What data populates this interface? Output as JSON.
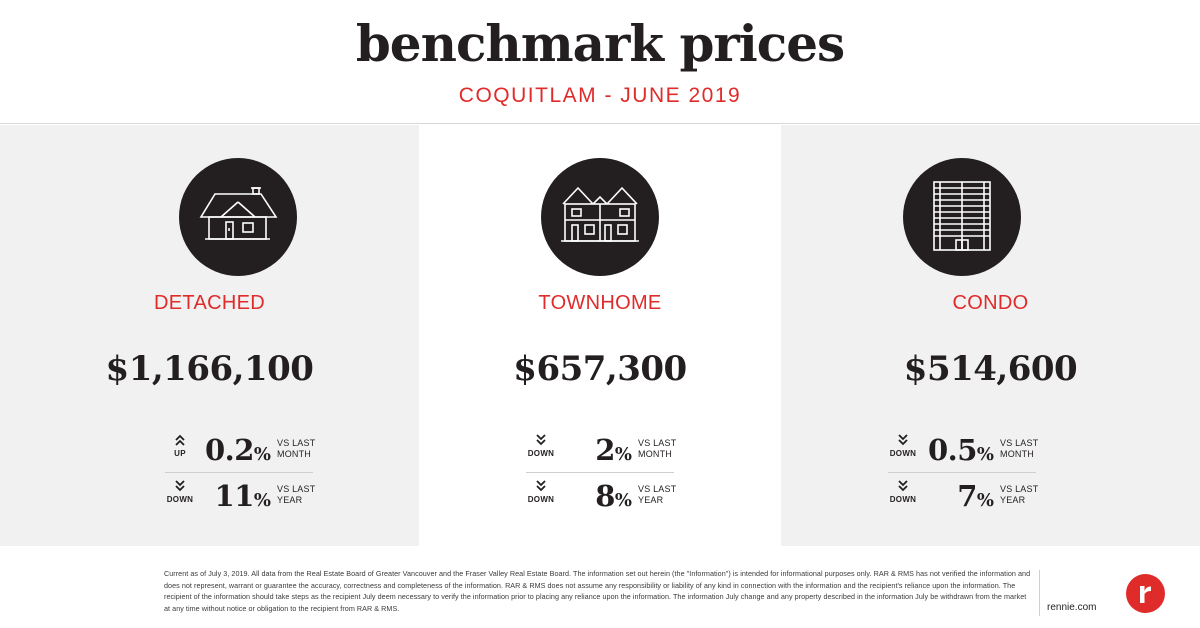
{
  "header": {
    "title": "benchmark prices",
    "subtitle": "COQUITLAM - JUNE 2019"
  },
  "columns": [
    {
      "label": "DETACHED",
      "icon": "house-icon",
      "price": "$1,166,100",
      "stats": [
        {
          "direction": "UP",
          "value": "0.2",
          "symbol": "%",
          "compare_line1": "VS LAST",
          "compare_line2": "MONTH"
        },
        {
          "direction": "DOWN",
          "value": "11",
          "symbol": "%",
          "compare_line1": "VS LAST",
          "compare_line2": "YEAR"
        }
      ]
    },
    {
      "label": "TOWNHOME",
      "icon": "townhome-icon",
      "price": "$657,300",
      "stats": [
        {
          "direction": "DOWN",
          "value": "2",
          "symbol": "%",
          "compare_line1": "VS LAST",
          "compare_line2": "MONTH"
        },
        {
          "direction": "DOWN",
          "value": "8",
          "symbol": "%",
          "compare_line1": "VS LAST",
          "compare_line2": "YEAR"
        }
      ]
    },
    {
      "label": "CONDO",
      "icon": "condo-building-icon",
      "price": "$514,600",
      "stats": [
        {
          "direction": "DOWN",
          "value": "0.5",
          "symbol": "%",
          "compare_line1": "VS LAST",
          "compare_line2": "MONTH"
        },
        {
          "direction": "DOWN",
          "value": "7",
          "symbol": "%",
          "compare_line1": "VS LAST",
          "compare_line2": "YEAR"
        }
      ]
    }
  ],
  "footer": {
    "disclaimer": "Current as of July 3, 2019. All data from the Real Estate Board of Greater Vancouver and the Fraser Valley Real Estate Board. The information set out herein (the \"Information\") is intended for informational purposes only. RAR & RMS has not verified the information and does not represent, warrant or guarantee the accuracy, correctness and completeness of the information. RAR & RMS does not assume any responsibility or liability of any kind in connection with the information and the recipient's reliance upon the information. The recipient of the information should take steps as the recipient July deem necessary to verify the information prior to placing any reliance upon the information. The information July change and any property described in the information July be withdrawn from the market at any time without notice or obligation to the recipient from RAR & RMS.",
    "website": "rennie.com",
    "logo_icon": "rennie-logo-icon"
  },
  "colors": {
    "accent_red": "#e02b2b",
    "dark": "#231f20",
    "panel_grey": "#f1f1f1"
  }
}
